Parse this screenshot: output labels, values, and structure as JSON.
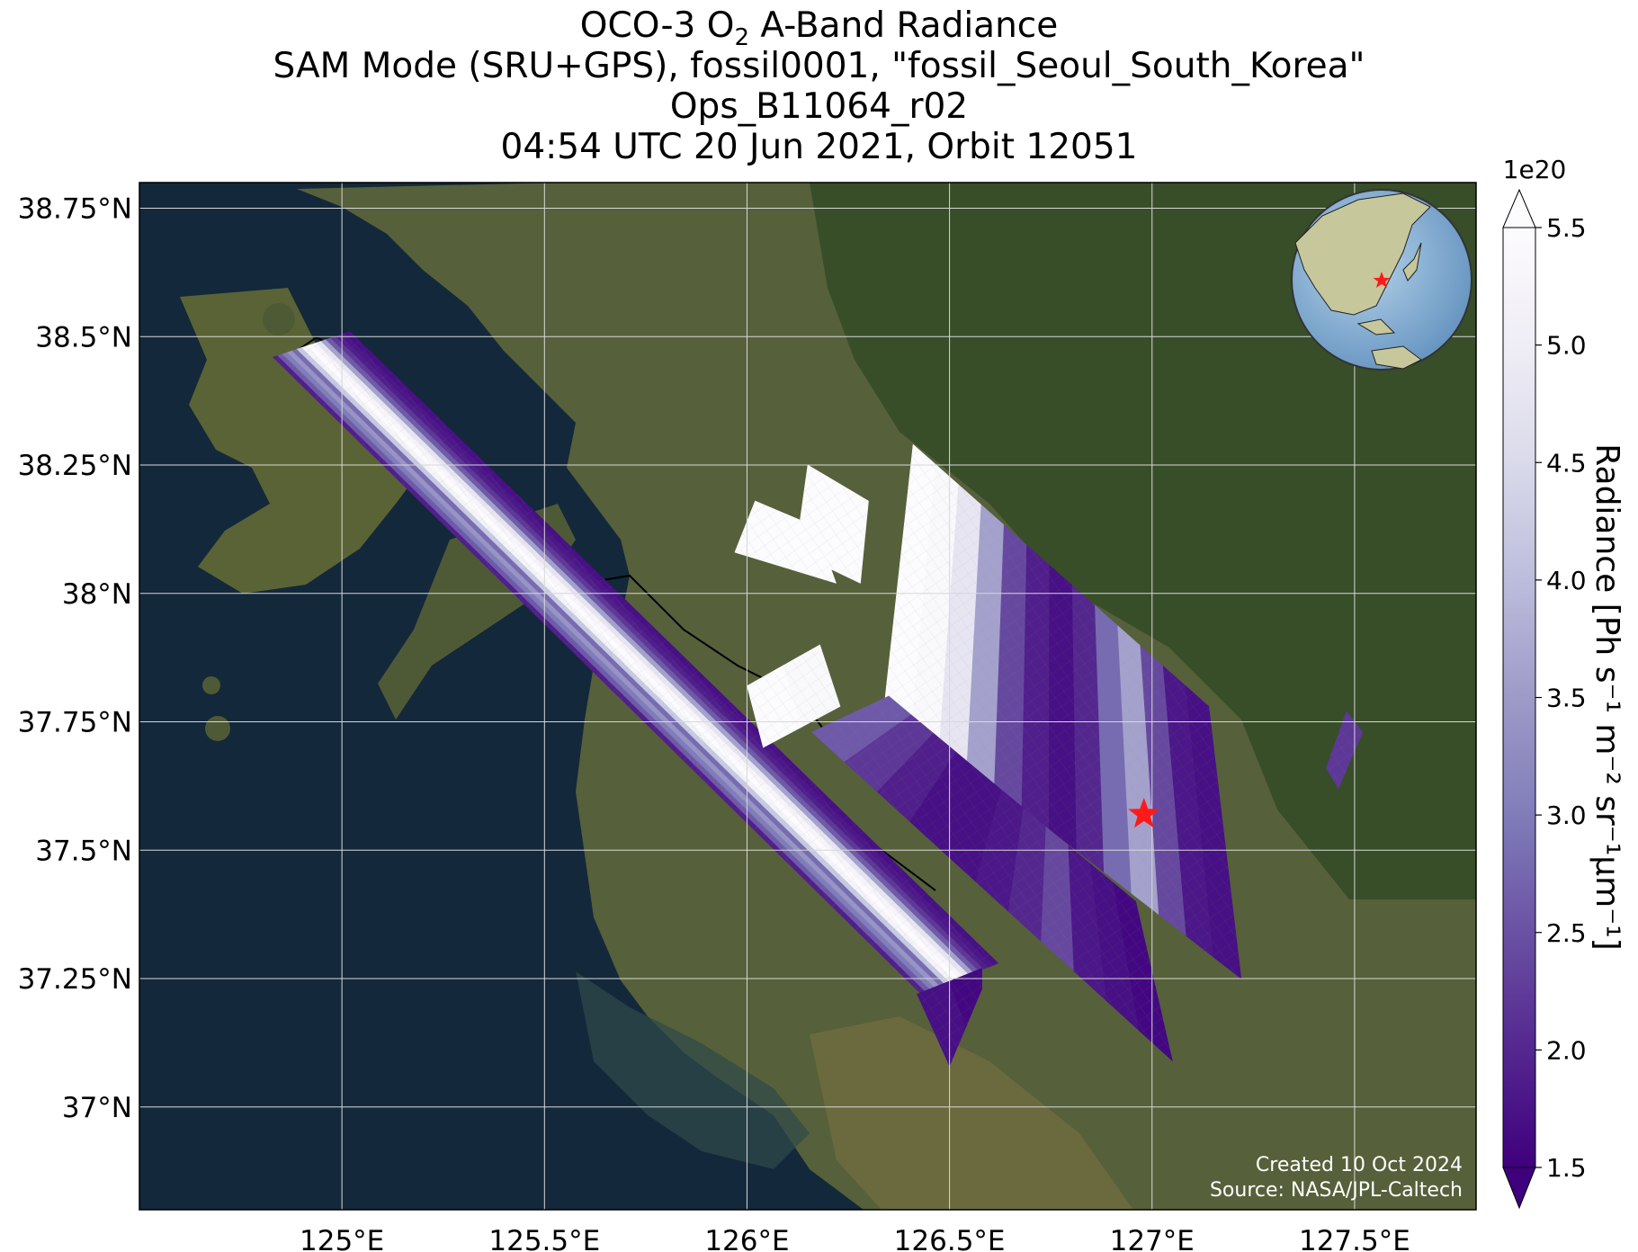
{
  "title": {
    "line1_pre": "OCO-3 O",
    "line1_sub": "2",
    "line1_post": " A-Band Radiance",
    "line2": "SAM Mode (SRU+GPS), fossil0001, \"fossil_Seoul_South_Korea\"",
    "line3": "Ops_B11064_r02",
    "line4": "04:54 UTC 20 Jun 2021, Orbit 12051"
  },
  "map": {
    "lon_range": [
      124.5,
      127.8
    ],
    "lat_range": [
      36.8,
      38.8
    ],
    "lon_ticks": [
      {
        "value": 125.0,
        "label": "125°E"
      },
      {
        "value": 125.5,
        "label": "125.5°E"
      },
      {
        "value": 126.0,
        "label": "126°E"
      },
      {
        "value": 126.5,
        "label": "126.5°E"
      },
      {
        "value": 127.0,
        "label": "127°E"
      },
      {
        "value": 127.5,
        "label": "127.5°E"
      }
    ],
    "lat_ticks": [
      {
        "value": 38.75,
        "label": "38.75°N"
      },
      {
        "value": 38.5,
        "label": "38.5°N"
      },
      {
        "value": 38.25,
        "label": "38.25°N"
      },
      {
        "value": 38.0,
        "label": "38°N"
      },
      {
        "value": 37.75,
        "label": "37.75°N"
      },
      {
        "value": 37.5,
        "label": "37.5°N"
      },
      {
        "value": 37.25,
        "label": "37.25°N"
      },
      {
        "value": 37.0,
        "label": "37°N"
      }
    ],
    "grid": true,
    "target": {
      "name": "fossil_Seoul_South_Korea",
      "lon": 126.98,
      "lat": 37.57,
      "marker": "red-star"
    },
    "credit_line1": "Created 10 Oct 2024",
    "credit_line2": "Source: NASA/JPL-Caltech",
    "inset_globe": {
      "placement": "top-right",
      "marker": "red-star",
      "region": "East Asia"
    },
    "colors": {
      "ocean": "#13283a",
      "land": "#56603a",
      "grid": "#d8d8d8"
    }
  },
  "colorbar": {
    "label": "Radiance [Ph s⁻¹ m⁻² sr⁻¹μm⁻¹]",
    "scale_label": "1e20",
    "range": [
      1.5,
      5.5
    ],
    "extend": "both",
    "ticks": [
      "1.5",
      "2.0",
      "2.5",
      "3.0",
      "3.5",
      "4.0",
      "4.5",
      "5.0",
      "5.5"
    ],
    "colormap": "Purples_r",
    "color_low": "#3f007d",
    "color_high": "#fcfbfd"
  },
  "chart_data": {
    "type": "heatmap",
    "xlabel": "",
    "ylabel": "",
    "value_units": "1e20 Ph s⁻¹ m⁻² sr⁻¹μm⁻¹",
    "swaths": [
      {
        "corners_lonlat": [
          [
            124.83,
            38.46
          ],
          [
            125.02,
            38.51
          ],
          [
            126.62,
            37.28
          ],
          [
            126.43,
            37.22
          ]
        ],
        "along_track_values": [
          1.9,
          2.6,
          3.0,
          3.4,
          2.8,
          4.2,
          5.2,
          5.5,
          5.3,
          4.8,
          3.6,
          2.6,
          2.2,
          1.9,
          1.8,
          1.7
        ]
      },
      {
        "corners_lonlat": [
          [
            126.42,
            37.22
          ],
          [
            126.58,
            37.27
          ],
          [
            126.58,
            37.23
          ],
          [
            126.5,
            37.08
          ]
        ],
        "along_track_values": [
          1.7,
          1.6
        ]
      },
      {
        "corners_lonlat": [
          [
            126.41,
            38.29
          ],
          [
            127.14,
            37.78
          ],
          [
            127.22,
            37.25
          ],
          [
            126.34,
            37.79
          ]
        ],
        "along_track_values": [
          5.5,
          5.4,
          4.8,
          3.6,
          2.4,
          1.9,
          1.7,
          2.0,
          2.8,
          3.6,
          2.4,
          1.8,
          1.7
        ]
      },
      {
        "corners_lonlat": [
          [
            126.35,
            37.8
          ],
          [
            126.96,
            37.4
          ],
          [
            127.05,
            37.09
          ],
          [
            126.16,
            37.73
          ]
        ],
        "along_track_values": [
          2.6,
          2.2,
          1.9,
          1.7,
          1.7,
          1.8,
          2.0,
          2.4,
          1.8,
          1.7,
          1.6
        ]
      },
      {
        "corners_lonlat": [
          [
            126.02,
            38.18
          ],
          [
            126.17,
            38.13
          ],
          [
            126.22,
            38.02
          ],
          [
            125.97,
            38.08
          ]
        ],
        "along_track_values": [
          5.5,
          5.5
        ]
      },
      {
        "corners_lonlat": [
          [
            126.15,
            38.25
          ],
          [
            126.3,
            38.18
          ],
          [
            126.28,
            38.02
          ],
          [
            126.12,
            38.08
          ]
        ],
        "along_track_values": [
          5.5,
          5.5
        ]
      },
      {
        "corners_lonlat": [
          [
            126.0,
            37.82
          ],
          [
            126.18,
            37.9
          ],
          [
            126.23,
            37.78
          ],
          [
            126.04,
            37.7
          ]
        ],
        "along_track_values": [
          5.5,
          5.4
        ]
      },
      {
        "corners_lonlat": [
          [
            127.43,
            37.66
          ],
          [
            127.48,
            37.77
          ],
          [
            127.52,
            37.73
          ],
          [
            127.46,
            37.62
          ]
        ],
        "along_track_values": [
          2.2
        ]
      }
    ]
  }
}
